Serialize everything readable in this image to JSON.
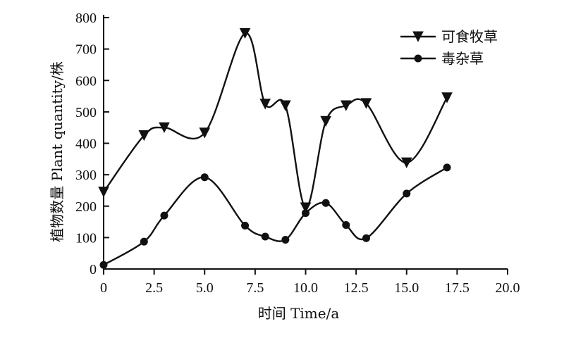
{
  "chart_data": {
    "type": "line",
    "xlabel": "时间 Time/a",
    "ylabel": "植物数量 Plant quantity/株",
    "xlim": [
      0,
      20
    ],
    "ylim": [
      0,
      800
    ],
    "x_ticks": [
      0,
      2.5,
      5,
      7.5,
      10,
      12.5,
      15,
      17.5,
      20
    ],
    "x_tick_labels": [
      "0",
      "2.5",
      "5.0",
      "7.5",
      "10.0",
      "12.5",
      "15.0",
      "17.5",
      "20.0"
    ],
    "y_ticks": [
      0,
      100,
      200,
      300,
      400,
      500,
      600,
      700,
      800
    ],
    "y_tick_labels": [
      "0",
      "100",
      "200",
      "300",
      "400",
      "500",
      "600",
      "700",
      "800"
    ],
    "grid": false,
    "legend_position": "top-right",
    "series": [
      {
        "name": "可食牧草",
        "marker": "triangle-down",
        "color": "#111111",
        "x": [
          0,
          2,
          3,
          5,
          7,
          8,
          9,
          10,
          11,
          12,
          13,
          15,
          17
        ],
        "y": [
          245,
          425,
          450,
          433,
          750,
          525,
          520,
          195,
          470,
          520,
          527,
          338,
          545
        ]
      },
      {
        "name": "毒杂草",
        "marker": "circle",
        "color": "#111111",
        "x": [
          0,
          2,
          3,
          5,
          7,
          8,
          9,
          10,
          11,
          12,
          13,
          15,
          17
        ],
        "y": [
          13,
          87,
          170,
          292,
          138,
          103,
          93,
          178,
          210,
          140,
          98,
          240,
          323
        ]
      }
    ]
  }
}
